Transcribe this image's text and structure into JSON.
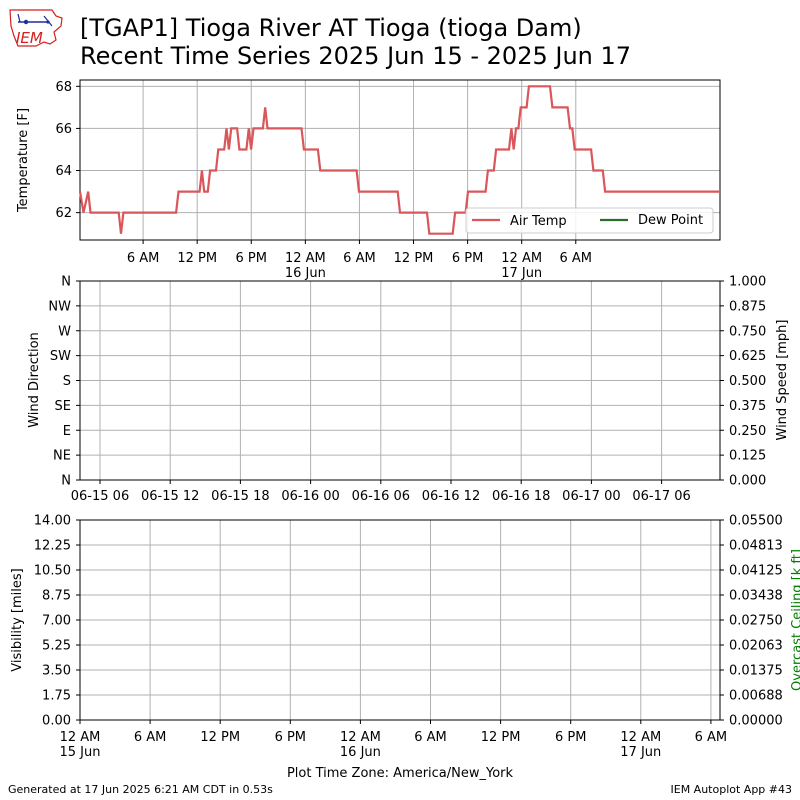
{
  "header": {
    "title_line1": "[TGAP1] Tioga River AT Tioga (tioga Dam)",
    "title_line2": "Recent Time Series 2025 Jun 15 - 2025 Jun 17",
    "logo_text": "IEM"
  },
  "footer": {
    "generated": "Generated at 17 Jun 2025 6:21 AM CDT in 0.53s",
    "app": "IEM Autoplot App #43"
  },
  "colors": {
    "air_temp": "#d9575a",
    "dew_point": "#2e6b2e",
    "grid": "#b0b0b0",
    "ceiling_label": "#008000",
    "logo_red": "#d42020",
    "logo_blue": "#1a2fa0"
  },
  "chart_data": [
    {
      "type": "line",
      "ylabel": "Temperature [F]",
      "ylim": [
        60.7,
        68.3
      ],
      "yticks": [
        62,
        64,
        66,
        68
      ],
      "grid": true,
      "legend": {
        "placement": "bottom-right",
        "entries": [
          "Air Temp",
          "Dew Point"
        ]
      },
      "xlim_hours": [
        8,
        79
      ],
      "xticks": [
        {
          "hour": 15,
          "label": "6 AM",
          "sub": ""
        },
        {
          "hour": 21,
          "label": "12 PM",
          "sub": ""
        },
        {
          "hour": 27,
          "label": "6 PM",
          "sub": ""
        },
        {
          "hour": 33,
          "label": "12 AM",
          "sub": "16 Jun"
        },
        {
          "hour": 39,
          "label": "6 AM",
          "sub": ""
        },
        {
          "hour": 45,
          "label": "12 PM",
          "sub": ""
        },
        {
          "hour": 51,
          "label": "6 PM",
          "sub": ""
        },
        {
          "hour": 57,
          "label": "12 AM",
          "sub": "17 Jun"
        },
        {
          "hour": 63,
          "label": "6 AM",
          "sub": ""
        }
      ],
      "series": [
        {
          "name": "Air Temp",
          "points": [
            [
              0.0,
              63
            ],
            [
              0.3,
              62
            ],
            [
              0.7,
              63
            ],
            [
              0.9,
              62
            ],
            [
              3.3,
              62
            ],
            [
              3.5,
              61
            ],
            [
              3.7,
              62
            ],
            [
              8.2,
              62
            ],
            [
              8.4,
              63
            ],
            [
              10.2,
              63
            ],
            [
              10.4,
              64
            ],
            [
              10.6,
              63
            ],
            [
              10.9,
              63
            ],
            [
              11.1,
              64
            ],
            [
              11.6,
              64
            ],
            [
              11.8,
              65
            ],
            [
              12.3,
              65
            ],
            [
              12.5,
              66
            ],
            [
              12.7,
              65
            ],
            [
              12.9,
              66
            ],
            [
              13.4,
              66
            ],
            [
              13.6,
              65
            ],
            [
              14.2,
              65
            ],
            [
              14.4,
              66
            ],
            [
              14.6,
              65
            ],
            [
              14.8,
              66
            ],
            [
              15.6,
              66
            ],
            [
              15.8,
              67
            ],
            [
              16.0,
              66
            ],
            [
              18.9,
              66
            ],
            [
              19.1,
              65
            ],
            [
              20.3,
              65
            ],
            [
              20.5,
              64
            ],
            [
              23.6,
              64
            ],
            [
              23.8,
              63
            ],
            [
              27.1,
              63
            ],
            [
              27.3,
              62
            ],
            [
              29.6,
              62
            ],
            [
              29.8,
              61
            ],
            [
              31.8,
              61
            ],
            [
              32.0,
              62
            ],
            [
              32.9,
              62
            ],
            [
              33.1,
              63
            ],
            [
              34.6,
              63
            ],
            [
              34.8,
              64
            ],
            [
              35.3,
              64
            ],
            [
              35.5,
              65
            ],
            [
              36.6,
              65
            ],
            [
              36.8,
              66
            ],
            [
              37.0,
              65
            ],
            [
              37.2,
              66
            ],
            [
              37.4,
              66
            ],
            [
              37.6,
              67
            ],
            [
              38.1,
              67
            ],
            [
              38.3,
              68
            ],
            [
              40.1,
              68
            ],
            [
              40.3,
              67
            ],
            [
              41.6,
              67
            ],
            [
              41.8,
              66
            ],
            [
              42.0,
              66
            ],
            [
              42.2,
              65
            ],
            [
              43.6,
              65
            ],
            [
              43.8,
              64
            ],
            [
              44.6,
              64
            ],
            [
              44.8,
              63
            ],
            [
              54.6,
              63
            ]
          ]
        },
        {
          "name": "Dew Point",
          "points": []
        }
      ]
    },
    {
      "type": "line",
      "ylabel": "Wind Direction",
      "ylabel_right": "Wind Speed [mph]",
      "yticks_left": [
        "N",
        "NE",
        "E",
        "SE",
        "S",
        "SW",
        "W",
        "NW",
        "N"
      ],
      "yticks_right": [
        "0.000",
        "0.125",
        "0.250",
        "0.375",
        "0.500",
        "0.625",
        "0.750",
        "0.875",
        "1.000"
      ],
      "ylim_right": [
        0,
        1
      ],
      "grid": true,
      "xticks": [
        "06-15 06",
        "06-15 12",
        "06-15 18",
        "06-16 00",
        "06-16 06",
        "06-16 12",
        "06-16 18",
        "06-17 00",
        "06-17 06"
      ],
      "series": []
    },
    {
      "type": "line",
      "ylabel": "Visibility [miles]",
      "ylabel_right": "Overcast Ceiling [k ft]",
      "ylim": [
        0,
        14
      ],
      "yticks_left": [
        "0.00",
        "1.75",
        "3.50",
        "5.25",
        "7.00",
        "8.75",
        "10.50",
        "12.25",
        "14.00"
      ],
      "ylim_right": [
        0,
        0.055
      ],
      "yticks_right": [
        "0.00000",
        "0.00688",
        "0.01375",
        "0.02063",
        "0.02750",
        "0.03438",
        "0.04125",
        "0.04813",
        "0.05500"
      ],
      "grid": true,
      "xlabel": "Plot Time Zone: America/New_York",
      "xticks": [
        {
          "label": "12 AM",
          "sub": "15 Jun"
        },
        {
          "label": "6 AM",
          "sub": ""
        },
        {
          "label": "12 PM",
          "sub": ""
        },
        {
          "label": "6 PM",
          "sub": ""
        },
        {
          "label": "12 AM",
          "sub": "16 Jun"
        },
        {
          "label": "6 AM",
          "sub": ""
        },
        {
          "label": "12 PM",
          "sub": ""
        },
        {
          "label": "6 PM",
          "sub": ""
        },
        {
          "label": "12 AM",
          "sub": "17 Jun"
        },
        {
          "label": "6 AM",
          "sub": ""
        }
      ],
      "series": []
    }
  ]
}
